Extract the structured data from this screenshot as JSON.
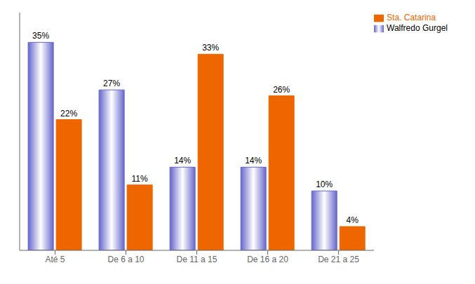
{
  "chart_data": {
    "type": "bar",
    "categories": [
      "Até 5",
      "De 6 a 10",
      "De 11 a 15",
      "De 16 a 20",
      "De 21 a 25"
    ],
    "series": [
      {
        "name": "Walfredo Gurgel",
        "color": "#6666cc",
        "values": [
          35,
          27,
          14,
          14,
          10
        ],
        "value_labels": [
          "35%",
          "27%",
          "14%",
          "14%",
          "10%"
        ]
      },
      {
        "name": "Sta. Catarina",
        "color": "#ee6600",
        "values": [
          22,
          11,
          33,
          26,
          4
        ],
        "value_labels": [
          "22%",
          "11%",
          "33%",
          "26%",
          "4%"
        ]
      }
    ],
    "ylim": [
      0,
      40
    ],
    "data_labels": true,
    "tick_labels": "x",
    "legend": "upper right",
    "grid": false
  }
}
